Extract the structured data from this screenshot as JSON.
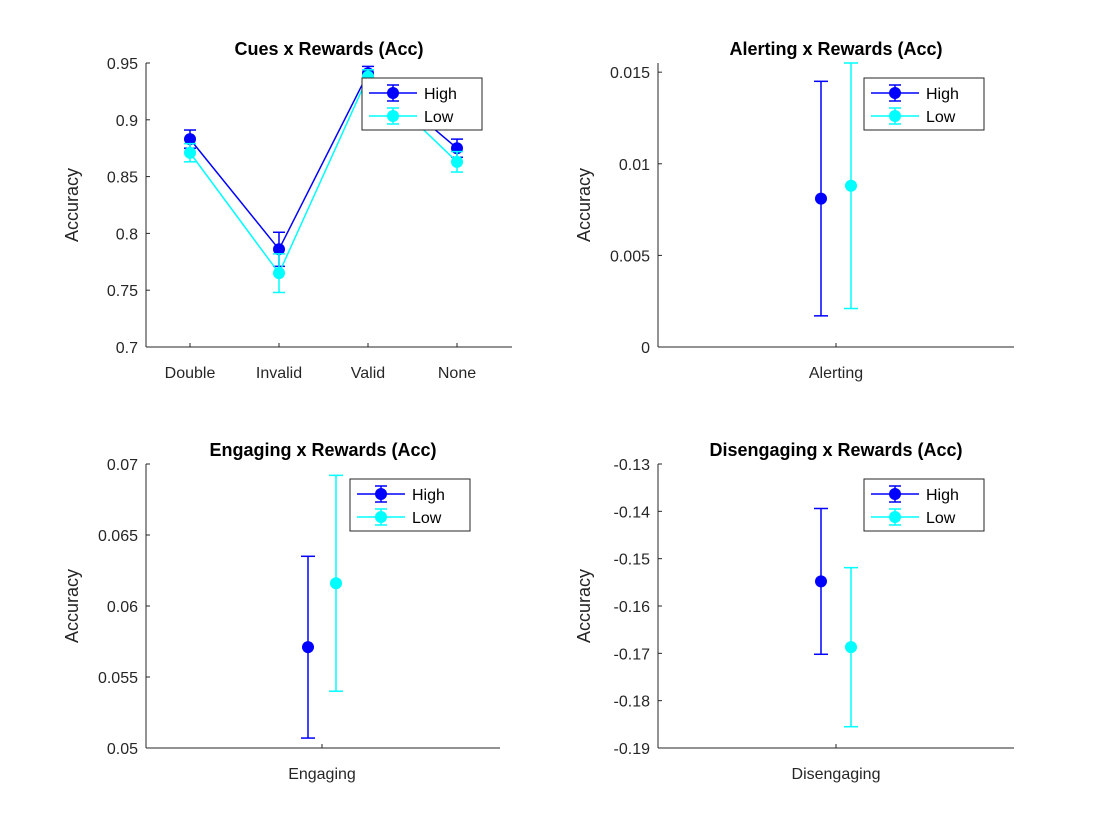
{
  "chart_data": [
    {
      "type": "line",
      "title": "Cues x Rewards (Acc)",
      "xlabel": "",
      "ylabel": "Accuracy",
      "categories": [
        "Double",
        "Invalid",
        "Valid",
        "None"
      ],
      "ylim": [
        0.7,
        0.95
      ],
      "yticks": [
        "0.7",
        "0.75",
        "0.8",
        "0.85",
        "0.9",
        "0.95"
      ],
      "legend_position": "top-right",
      "series": [
        {
          "name": "High",
          "color": "#0000ff",
          "values": [
            0.883,
            0.786,
            0.941,
            0.875
          ],
          "errors": [
            0.008,
            0.015,
            0.006,
            0.008
          ]
        },
        {
          "name": "Low",
          "color": "#00ffff",
          "values": [
            0.871,
            0.765,
            0.938,
            0.863
          ],
          "errors": [
            0.008,
            0.017,
            0.006,
            0.009
          ]
        }
      ]
    },
    {
      "type": "errorbar",
      "title": "Alerting x Rewards (Acc)",
      "xlabel": "",
      "ylabel": "Accuracy",
      "categories": [
        "Alerting"
      ],
      "ylim": [
        0,
        0.0155
      ],
      "yticks": [
        "0",
        "0.005",
        "0.01",
        "0.015"
      ],
      "legend_position": "top-right",
      "series": [
        {
          "name": "High",
          "color": "#0000ff",
          "values": [
            0.0081
          ],
          "errors": [
            0.0064
          ]
        },
        {
          "name": "Low",
          "color": "#00ffff",
          "values": [
            0.0088
          ],
          "errors": [
            0.0067
          ]
        }
      ]
    },
    {
      "type": "errorbar",
      "title": "Engaging x Rewards (Acc)",
      "xlabel": "",
      "ylabel": "Accuracy",
      "categories": [
        "Engaging"
      ],
      "ylim": [
        0.05,
        0.07
      ],
      "yticks": [
        "0.05",
        "0.055",
        "0.06",
        "0.065",
        "0.07"
      ],
      "legend_position": "top-right",
      "series": [
        {
          "name": "High",
          "color": "#0000ff",
          "values": [
            0.0571
          ],
          "errors": [
            0.0064
          ]
        },
        {
          "name": "Low",
          "color": "#00ffff",
          "values": [
            0.0616
          ],
          "errors": [
            0.0076
          ]
        }
      ]
    },
    {
      "type": "errorbar",
      "title": "Disengaging x Rewards (Acc)",
      "xlabel": "",
      "ylabel": "Accuracy",
      "categories": [
        "Disengaging"
      ],
      "ylim": [
        -0.19,
        -0.13
      ],
      "yticks": [
        "-0.19",
        "-0.18",
        "-0.17",
        "-0.16",
        "-0.15",
        "-0.14",
        "-0.13"
      ],
      "legend_position": "top-right",
      "series": [
        {
          "name": "High",
          "color": "#0000ff",
          "values": [
            -0.1548
          ],
          "errors": [
            0.0154
          ]
        },
        {
          "name": "Low",
          "color": "#00ffff",
          "values": [
            -0.1687
          ],
          "errors": [
            0.0168
          ]
        }
      ]
    }
  ]
}
